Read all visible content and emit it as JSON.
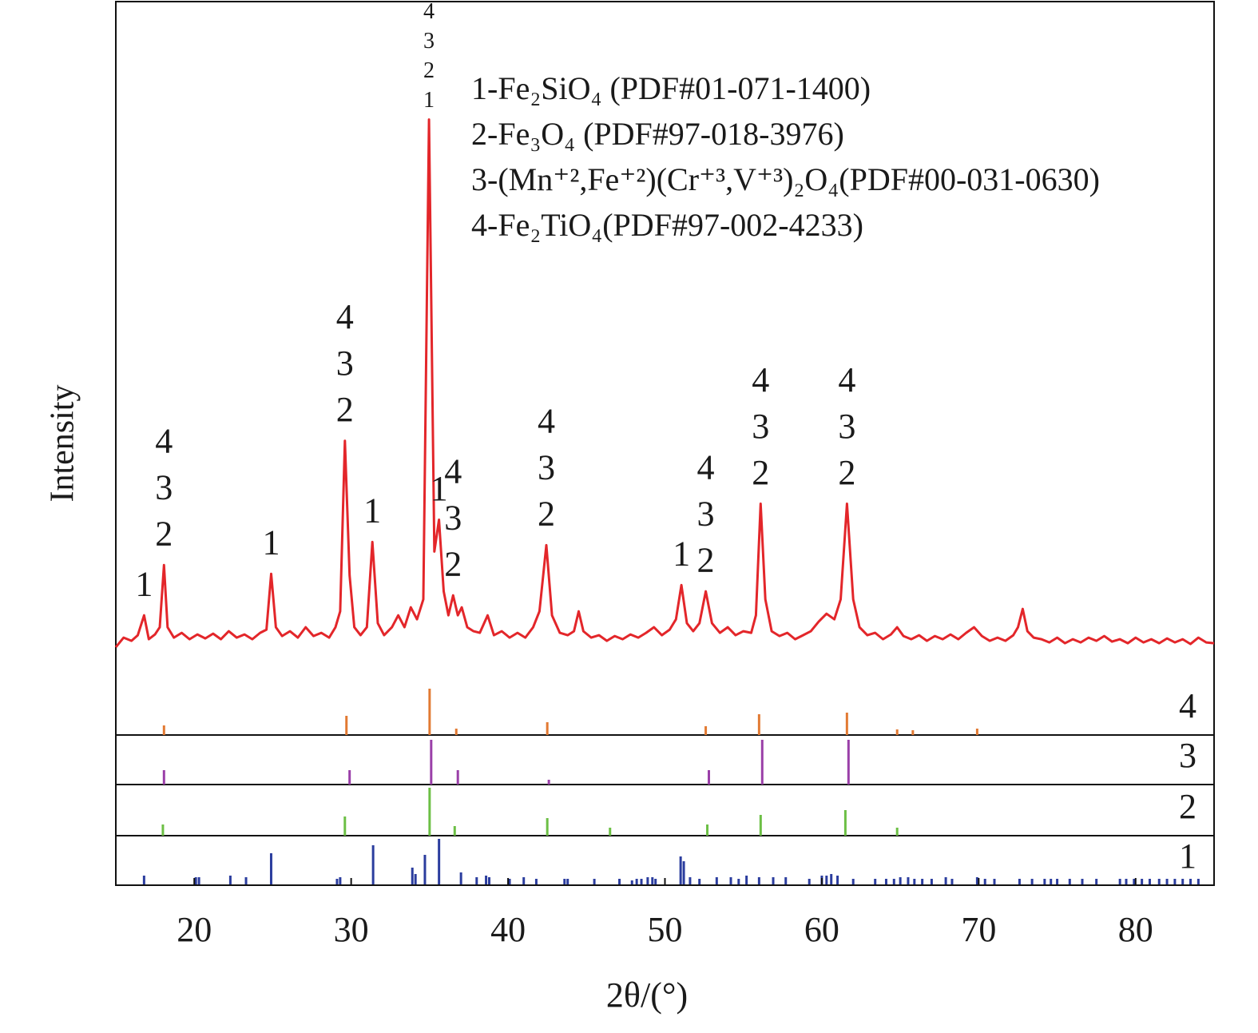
{
  "chart_data": {
    "type": "line",
    "xlabel": "2θ/(°)",
    "ylabel": "Intensity",
    "xlim": [
      15,
      85
    ],
    "xticks": [
      20,
      30,
      40,
      50,
      60,
      70,
      80
    ],
    "ylim": [
      0,
      840
    ],
    "x": [
      15,
      15.5,
      16,
      16.4,
      16.8,
      17.1,
      17.5,
      17.8,
      18.07,
      18.3,
      18.7,
      19.2,
      19.7,
      20.2,
      20.7,
      21.2,
      21.7,
      22.2,
      22.7,
      23.2,
      23.7,
      24.2,
      24.6,
      24.9,
      25.2,
      25.6,
      26.1,
      26.6,
      27.1,
      27.6,
      28.1,
      28.6,
      29.0,
      29.3,
      29.6,
      29.9,
      30.2,
      30.6,
      31.0,
      31.35,
      31.7,
      32.1,
      32.6,
      33.0,
      33.4,
      33.8,
      34.2,
      34.6,
      34.96,
      35.3,
      35.6,
      35.9,
      36.2,
      36.5,
      36.8,
      37.05,
      37.4,
      37.8,
      38.2,
      38.7,
      39.1,
      39.6,
      40.1,
      40.6,
      41.1,
      41.6,
      42.0,
      42.44,
      42.8,
      43.3,
      43.8,
      44.2,
      44.5,
      44.8,
      45.3,
      45.8,
      46.3,
      46.8,
      47.3,
      47.8,
      48.3,
      48.8,
      49.3,
      49.8,
      50.3,
      50.7,
      51.05,
      51.4,
      51.8,
      52.2,
      52.6,
      53.0,
      53.5,
      54.0,
      54.5,
      55.0,
      55.5,
      55.8,
      56.1,
      56.4,
      56.8,
      57.3,
      57.8,
      58.3,
      58.8,
      59.3,
      59.8,
      60.3,
      60.8,
      61.2,
      61.6,
      62.0,
      62.4,
      62.9,
      63.4,
      63.9,
      64.4,
      64.8,
      65.2,
      65.7,
      66.2,
      66.7,
      67.2,
      67.7,
      68.2,
      68.7,
      69.2,
      69.7,
      70.2,
      70.7,
      71.2,
      71.7,
      72.2,
      72.5,
      72.8,
      73.1,
      73.5,
      74,
      74.5,
      75,
      75.5,
      76,
      76.5,
      77,
      77.5,
      78,
      78.5,
      79,
      79.5,
      80,
      80.5,
      81,
      81.5,
      82,
      82.5,
      83,
      83.5,
      84,
      84.5,
      85
    ],
    "series": [
      {
        "color": "#e3262a",
        "values": [
          30,
          42,
          38,
          45,
          70,
          40,
          46,
          55,
          133,
          55,
          42,
          48,
          40,
          46,
          41,
          47,
          40,
          50,
          42,
          46,
          40,
          48,
          52,
          122,
          55,
          44,
          50,
          42,
          55,
          44,
          48,
          42,
          55,
          75,
          289,
          120,
          55,
          45,
          55,
          162,
          60,
          45,
          55,
          70,
          55,
          80,
          65,
          90,
          692,
          150,
          190,
          100,
          70,
          95,
          70,
          80,
          55,
          50,
          48,
          70,
          45,
          50,
          42,
          48,
          42,
          55,
          75,
          158,
          70,
          48,
          45,
          50,
          75,
          50,
          42,
          45,
          38,
          44,
          40,
          46,
          42,
          48,
          55,
          45,
          52,
          65,
          108,
          60,
          50,
          60,
          100,
          60,
          48,
          55,
          45,
          50,
          48,
          70,
          210,
          90,
          50,
          44,
          48,
          40,
          45,
          50,
          62,
          72,
          65,
          90,
          210,
          90,
          55,
          45,
          48,
          40,
          46,
          55,
          44,
          40,
          45,
          38,
          44,
          40,
          46,
          40,
          48,
          55,
          44,
          38,
          42,
          38,
          45,
          55,
          78,
          50,
          42,
          40,
          36,
          42,
          35,
          40,
          36,
          42,
          38,
          44,
          37,
          40,
          35,
          42,
          36,
          40,
          35,
          41,
          36,
          40,
          34,
          42,
          36,
          35
        ]
      }
    ],
    "peak_labels": [
      {
        "x": 16.8,
        "text": [
          "1"
        ]
      },
      {
        "x": 18.07,
        "text": [
          "4",
          "3",
          "2"
        ]
      },
      {
        "x": 24.9,
        "text": [
          "1"
        ]
      },
      {
        "x": 29.6,
        "text": [
          "4",
          "3",
          "2"
        ]
      },
      {
        "x": 31.35,
        "text": [
          "1"
        ]
      },
      {
        "x": 34.96,
        "text": [
          "4",
          "3",
          "2",
          "1"
        ]
      },
      {
        "x": 35.6,
        "text": [
          "1"
        ]
      },
      {
        "x": 36.5,
        "text": [
          "4",
          "3",
          "2"
        ]
      },
      {
        "x": 42.44,
        "text": [
          "4",
          "3",
          "2"
        ]
      },
      {
        "x": 51.05,
        "text": [
          "1"
        ]
      },
      {
        "x": 52.6,
        "text": [
          "4",
          "3",
          "2"
        ]
      },
      {
        "x": 56.1,
        "text": [
          "4",
          "3",
          "2"
        ]
      },
      {
        "x": 61.6,
        "text": [
          "4",
          "3",
          "2"
        ]
      }
    ],
    "reference_ylim": [
      0,
      60
    ],
    "reference_patterns": [
      {
        "label": "1",
        "name": "1-Fe₂SiO₄ (PDF#01-071-1400)",
        "color": "#2b3d9e",
        "x": [
          16.8,
          20.1,
          20.3,
          22.3,
          23.3,
          24.9,
          29.1,
          29.3,
          31.4,
          33.9,
          34.1,
          34.7,
          35.6,
          37.0,
          38.0,
          38.6,
          38.8,
          40.1,
          41.0,
          41.8,
          43.6,
          43.8,
          45.5,
          47.1,
          47.9,
          48.2,
          48.5,
          48.9,
          49.2,
          49.4,
          51.0,
          51.2,
          51.6,
          52.2,
          53.3,
          54.2,
          54.7,
          55.2,
          56.0,
          56.9,
          57.7,
          59.2,
          60.0,
          60.3,
          60.6,
          61.0,
          62.0,
          63.4,
          64.1,
          64.6,
          65.0,
          65.5,
          65.9,
          66.4,
          67.0,
          67.9,
          68.3,
          69.9,
          70.4,
          71.0,
          72.6,
          73.4,
          74.2,
          74.6,
          75.0,
          75.8,
          76.6,
          77.5,
          79.0,
          79.4,
          79.9,
          80.4,
          80.9,
          81.5,
          82.0,
          82.5,
          83.0,
          83.5,
          84.0
        ],
        "values": [
          12,
          10,
          10,
          12,
          10,
          40,
          8,
          10,
          50,
          22,
          14,
          38,
          58,
          16,
          10,
          12,
          10,
          8,
          10,
          8,
          8,
          8,
          8,
          8,
          6,
          8,
          8,
          10,
          10,
          8,
          36,
          30,
          10,
          8,
          10,
          10,
          8,
          12,
          10,
          10,
          10,
          8,
          12,
          12,
          14,
          12,
          8,
          8,
          8,
          8,
          10,
          10,
          8,
          8,
          8,
          10,
          8,
          10,
          8,
          8,
          8,
          8,
          8,
          8,
          8,
          8,
          8,
          8,
          8,
          8,
          8,
          8,
          8,
          8,
          8,
          8,
          8,
          8,
          8
        ]
      },
      {
        "label": "2",
        "name": "2-Fe₃O₄ (PDF#97-018-3976)",
        "color": "#6cbf45",
        "x": [
          18.0,
          29.6,
          35.0,
          36.6,
          42.5,
          46.5,
          52.7,
          56.1,
          61.5,
          64.8
        ],
        "values": [
          14,
          24,
          60,
          12,
          22,
          10,
          14,
          26,
          32,
          10
        ]
      },
      {
        "label": "3",
        "name": "3-(Mn⁺²,Fe⁺²)(Cr⁺³,V⁺³)₂O₄(PDF#00-031-0630)",
        "color": "#9a3fa8",
        "x": [
          18.07,
          29.9,
          35.1,
          36.8,
          42.6,
          52.8,
          56.2,
          61.7
        ],
        "values": [
          18,
          18,
          56,
          18,
          6,
          18,
          56,
          56
        ]
      },
      {
        "label": "4",
        "name": "4-Fe₂TiO₄(PDF#97-002-4233)",
        "color": "#e27a33",
        "x": [
          18.07,
          29.7,
          35.0,
          36.7,
          42.5,
          52.6,
          56.0,
          61.6,
          64.8,
          65.8,
          69.9
        ],
        "values": [
          12,
          24,
          58,
          8,
          16,
          11,
          26,
          28,
          7,
          6,
          8
        ]
      }
    ]
  }
}
